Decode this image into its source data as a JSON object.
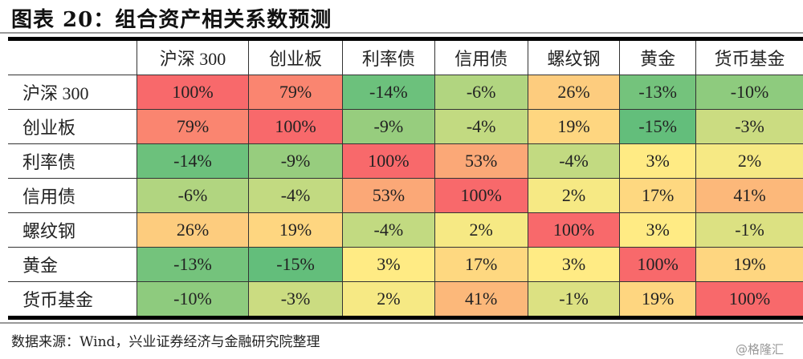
{
  "title": "图表 20：组合资产相关系数预测",
  "source": "数据来源：Wind，兴业证券经济与金融研究院整理",
  "watermark": "@格隆汇",
  "chart_data": {
    "type": "heatmap",
    "columns": [
      "沪深 300",
      "创业板",
      "利率债",
      "信用债",
      "螺纹钢",
      "黄金",
      "货币基金"
    ],
    "rows": [
      "沪深 300",
      "创业板",
      "利率债",
      "信用债",
      "螺纹钢",
      "黄金",
      "货币基金"
    ],
    "values": [
      [
        100,
        79,
        -14,
        -6,
        26,
        -13,
        -10
      ],
      [
        79,
        100,
        -9,
        -4,
        19,
        -15,
        -3
      ],
      [
        -14,
        -9,
        100,
        53,
        -4,
        3,
        2
      ],
      [
        -6,
        -4,
        53,
        100,
        2,
        17,
        41
      ],
      [
        26,
        19,
        -4,
        2,
        100,
        3,
        -1
      ],
      [
        -13,
        -15,
        3,
        17,
        3,
        100,
        19
      ],
      [
        -10,
        -3,
        2,
        41,
        -1,
        19,
        100
      ]
    ],
    "unit": "%",
    "color_scale": {
      "low": "#63BE7B",
      "mid": "#FFEB84",
      "high": "#F8696B"
    }
  }
}
